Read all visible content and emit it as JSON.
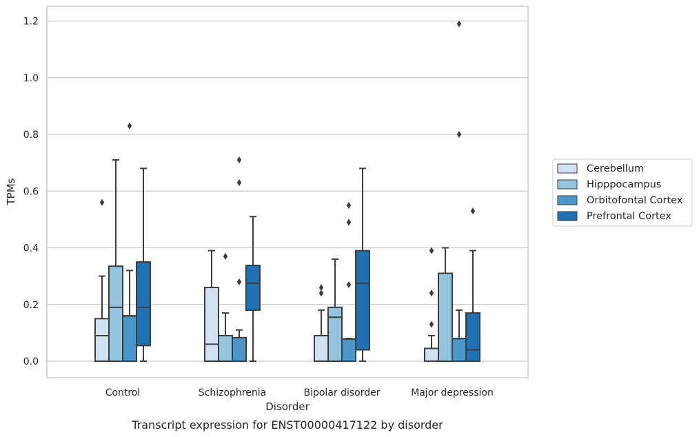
{
  "chart_data": {
    "type": "box",
    "title": "",
    "caption": "Transcript expression for ENST00000417122 by disorder",
    "xlabel": "Disorder",
    "ylabel": "TPMs",
    "ylim": [
      -0.06,
      1.25
    ],
    "yticks": [
      0.0,
      0.2,
      0.4,
      0.6,
      0.8,
      1.0,
      1.2
    ],
    "ytick_labels": [
      "0.0",
      "0.2",
      "0.4",
      "0.6",
      "0.8",
      "1.0",
      "1.2"
    ],
    "grid": "horizontal",
    "legend_position": "right-outside",
    "categories": [
      "Control",
      "Schizophrenia",
      "Bipolar disorder",
      "Major depression"
    ],
    "series": [
      {
        "name": "Cerebellum",
        "color": "#d0e1f2",
        "boxes": [
          {
            "q1": 0.0,
            "median": 0.09,
            "q3": 0.15,
            "whisker_low": 0.0,
            "whisker_high": 0.3,
            "outliers": [
              0.56
            ]
          },
          {
            "q1": 0.0,
            "median": 0.06,
            "q3": 0.26,
            "whisker_low": 0.0,
            "whisker_high": 0.39,
            "outliers": []
          },
          {
            "q1": 0.0,
            "median": 0.0,
            "q3": 0.09,
            "whisker_low": 0.0,
            "whisker_high": 0.18,
            "outliers": [
              0.24,
              0.26
            ]
          },
          {
            "q1": 0.0,
            "median": 0.0,
            "q3": 0.045,
            "whisker_low": 0.0,
            "whisker_high": 0.09,
            "outliers": [
              0.13,
              0.24,
              0.39
            ]
          }
        ]
      },
      {
        "name": "Hipppocampus",
        "color": "#94c4df",
        "boxes": [
          {
            "q1": 0.0,
            "median": 0.19,
            "q3": 0.335,
            "whisker_low": 0.0,
            "whisker_high": 0.71,
            "outliers": []
          },
          {
            "q1": 0.0,
            "median": 0.0,
            "q3": 0.09,
            "whisker_low": 0.0,
            "whisker_high": 0.17,
            "outliers": [
              0.37
            ]
          },
          {
            "q1": 0.0,
            "median": 0.155,
            "q3": 0.19,
            "whisker_low": 0.0,
            "whisker_high": 0.36,
            "outliers": []
          },
          {
            "q1": 0.0,
            "median": 0.0,
            "q3": 0.31,
            "whisker_low": 0.0,
            "whisker_high": 0.4,
            "outliers": []
          }
        ]
      },
      {
        "name": "Orbitofontal Cortex",
        "color": "#4a98c9",
        "boxes": [
          {
            "q1": 0.0,
            "median": 0.16,
            "q3": 0.16,
            "whisker_low": 0.0,
            "whisker_high": 0.32,
            "outliers": [
              0.83
            ]
          },
          {
            "q1": 0.0,
            "median": 0.0,
            "q3": 0.083,
            "whisker_low": 0.0,
            "whisker_high": 0.11,
            "outliers": [
              0.28,
              0.63,
              0.71
            ]
          },
          {
            "q1": 0.0,
            "median": 0.078,
            "q3": 0.078,
            "whisker_low": 0.0,
            "whisker_high": 0.08,
            "outliers": [
              0.27,
              0.49,
              0.55
            ]
          },
          {
            "q1": 0.0,
            "median": 0.08,
            "q3": 0.08,
            "whisker_low": 0.0,
            "whisker_high": 0.18,
            "outliers": [
              0.8,
              1.19
            ]
          }
        ]
      },
      {
        "name": "Prefrontal Cortex",
        "color": "#2070b4",
        "boxes": [
          {
            "q1": 0.055,
            "median": 0.19,
            "q3": 0.35,
            "whisker_low": 0.0,
            "whisker_high": 0.68,
            "outliers": []
          },
          {
            "q1": 0.18,
            "median": 0.275,
            "q3": 0.338,
            "whisker_low": 0.0,
            "whisker_high": 0.51,
            "outliers": []
          },
          {
            "q1": 0.04,
            "median": 0.275,
            "q3": 0.39,
            "whisker_low": 0.0,
            "whisker_high": 0.68,
            "outliers": []
          },
          {
            "q1": 0.0,
            "median": 0.04,
            "q3": 0.17,
            "whisker_low": 0.0,
            "whisker_high": 0.39,
            "outliers": [
              0.53
            ]
          }
        ]
      }
    ]
  }
}
